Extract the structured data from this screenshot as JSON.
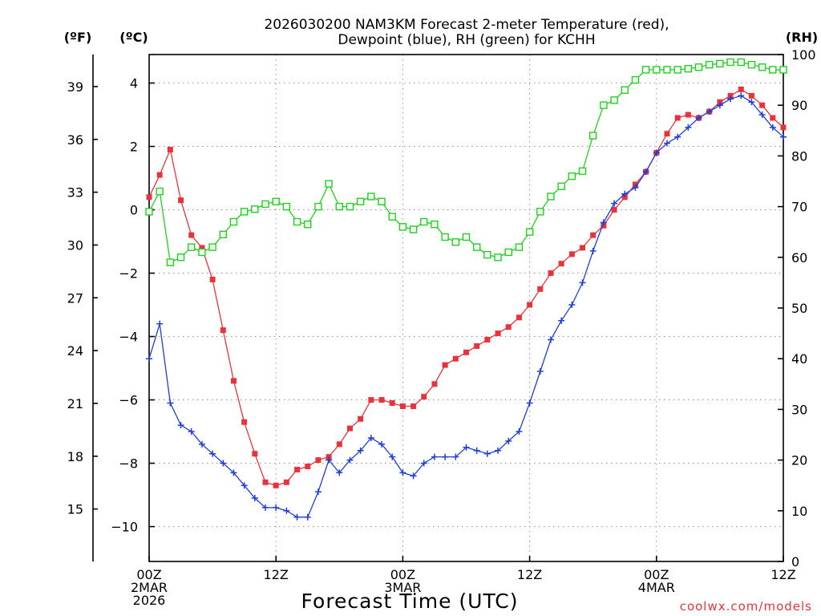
{
  "chart_data": {
    "type": "line",
    "title": [
      "2026030200 NAM3KM Forecast 2-meter Temperature (red),",
      "Dewpoint (blue), RH (green) for KCHH"
    ],
    "xlabel": "Forecast Time (UTC)",
    "credit": "coolwx.com/models",
    "units": {
      "fahrenheit": "(ºF)",
      "celsius": "(ºC)",
      "rh": "(RH)"
    },
    "x_range": [
      0,
      60
    ],
    "x_ticks": [
      {
        "hour": 0,
        "lines": [
          "00Z",
          "2MAR",
          "2026"
        ]
      },
      {
        "hour": 12,
        "lines": [
          "12Z"
        ]
      },
      {
        "hour": 24,
        "lines": [
          "00Z",
          "3MAR"
        ]
      },
      {
        "hour": 36,
        "lines": [
          "12Z"
        ]
      },
      {
        "hour": 48,
        "lines": [
          "00Z",
          "4MAR"
        ]
      },
      {
        "hour": 60,
        "lines": [
          "12Z"
        ]
      }
    ],
    "celsius_range": [
      -11.1,
      4.9
    ],
    "celsius_ticks": [
      "-10",
      "-8",
      "-6",
      "-4",
      "-2",
      "0",
      "2",
      "4"
    ],
    "fahrenheit_ticks": [
      "15",
      "18",
      "21",
      "24",
      "27",
      "30",
      "33",
      "36",
      "39"
    ],
    "rh_range": [
      0,
      100
    ],
    "rh_ticks": [
      "0",
      "10",
      "20",
      "30",
      "40",
      "50",
      "60",
      "70",
      "80",
      "90",
      "100"
    ],
    "series": [
      {
        "name": "Temperature (°C)",
        "color": "#e8323c",
        "axis": "celsius",
        "marker": "filled-square",
        "values": [
          0.4,
          1.1,
          1.9,
          0.3,
          -0.8,
          -1.2,
          -2.2,
          -3.8,
          -5.4,
          -6.7,
          -7.7,
          -8.6,
          -8.7,
          -8.6,
          -8.2,
          -8.1,
          -7.9,
          -7.8,
          -7.4,
          -6.9,
          -6.6,
          -6.0,
          -6.0,
          -6.1,
          -6.2,
          -6.2,
          -5.9,
          -5.5,
          -4.9,
          -4.7,
          -4.5,
          -4.3,
          -4.1,
          -3.9,
          -3.7,
          -3.4,
          -3.0,
          -2.5,
          -2.0,
          -1.7,
          -1.4,
          -1.2,
          -0.8,
          -0.5,
          0.0,
          0.4,
          0.8,
          1.2,
          1.8,
          2.4,
          2.9,
          3.0,
          2.9,
          3.1,
          3.4,
          3.6,
          3.8,
          3.6,
          3.3,
          2.9,
          2.6
        ]
      },
      {
        "name": "Dewpoint (°C)",
        "color": "#1e3fd6",
        "axis": "celsius",
        "marker": "plus",
        "values": [
          -4.7,
          -3.6,
          -6.1,
          -6.8,
          -7.0,
          -7.4,
          -7.7,
          -8.0,
          -8.3,
          -8.7,
          -9.1,
          -9.4,
          -9.4,
          -9.5,
          -9.7,
          -9.7,
          -8.9,
          -7.9,
          -8.3,
          -7.9,
          -7.6,
          -7.2,
          -7.4,
          -7.8,
          -8.3,
          -8.4,
          -8.0,
          -7.8,
          -7.8,
          -7.8,
          -7.5,
          -7.6,
          -7.7,
          -7.6,
          -7.3,
          -7.0,
          -6.1,
          -5.1,
          -4.1,
          -3.5,
          -3.0,
          -2.3,
          -1.3,
          -0.4,
          0.2,
          0.5,
          0.7,
          1.2,
          1.8,
          2.1,
          2.3,
          2.6,
          2.9,
          3.1,
          3.3,
          3.5,
          3.6,
          3.4,
          3.0,
          2.6,
          2.3
        ]
      },
      {
        "name": "RH (%)",
        "color": "#1fd11f",
        "axis": "rh",
        "marker": "open-square",
        "values": [
          69.0,
          73.0,
          59.0,
          60.0,
          62.0,
          61.0,
          62.0,
          64.5,
          67.0,
          69.0,
          69.5,
          70.5,
          71.0,
          70.0,
          67.0,
          66.5,
          70.0,
          74.5,
          70.0,
          70.0,
          71.0,
          72.0,
          71.0,
          68.0,
          66.0,
          65.5,
          67.0,
          66.5,
          64.0,
          63.0,
          64.0,
          62.0,
          60.5,
          60.0,
          61.0,
          62.0,
          65.0,
          69.0,
          72.0,
          74.0,
          76.0,
          77.0,
          84.0,
          90.0,
          91.0,
          93.0,
          95.0,
          97.0,
          97.0,
          97.0,
          97.0,
          97.2,
          97.5,
          98.0,
          98.2,
          98.5,
          98.5,
          98.0,
          97.5,
          97.0,
          97.0
        ]
      }
    ]
  }
}
